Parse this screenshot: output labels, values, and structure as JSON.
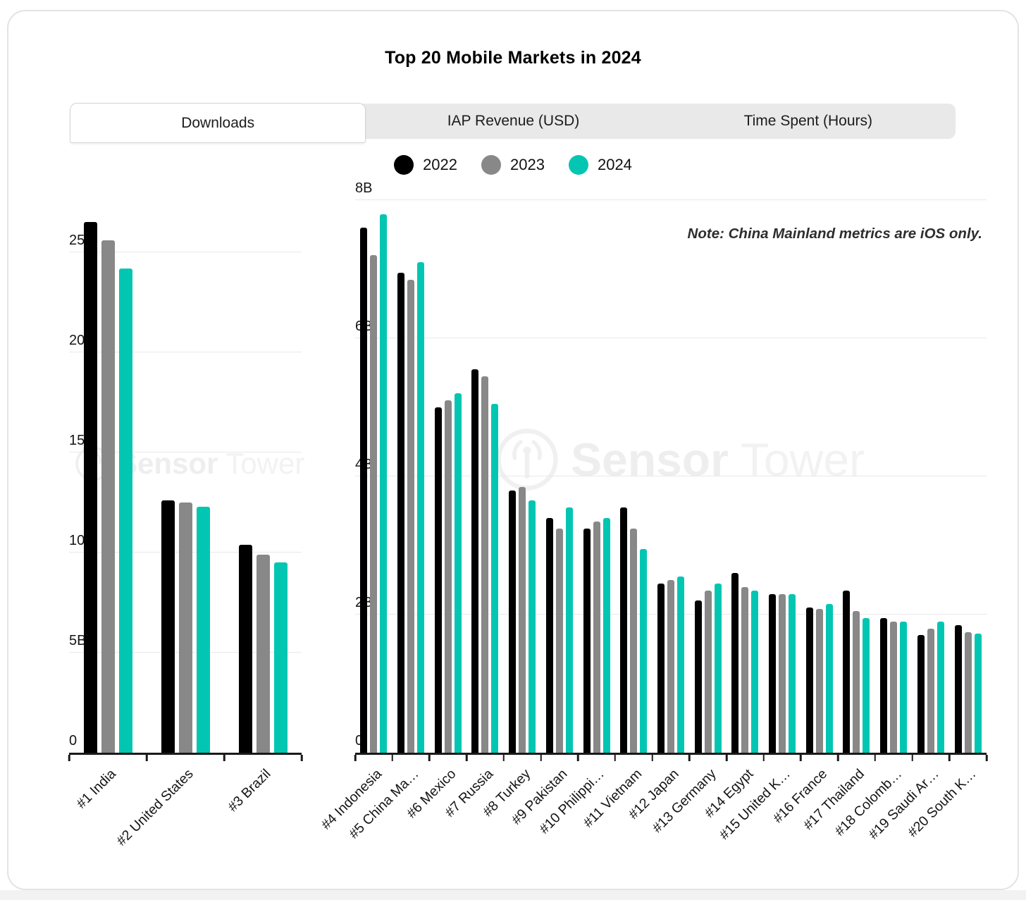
{
  "title": "Top 20 Mobile Markets in 2024",
  "tabs": [
    {
      "label": "Downloads",
      "active": true
    },
    {
      "label": "IAP Revenue (USD)",
      "active": false
    },
    {
      "label": "Time Spent (Hours)",
      "active": false
    }
  ],
  "legend": [
    {
      "label": "2022",
      "color": "#000000"
    },
    {
      "label": "2023",
      "color": "#888888"
    },
    {
      "label": "2024",
      "color": "#03c6b2"
    }
  ],
  "note": "Note: China Mainland metrics are iOS only.",
  "watermark": {
    "bold": "Sensor",
    "light": "Tower"
  },
  "colors": {
    "accent_2022": "#000000",
    "accent_2023": "#888888",
    "accent_2024": "#03c6b2",
    "tabbar_bg": "#e9e9e9",
    "gridline": "#e9e9e9",
    "axis": "#1a1a1a"
  },
  "chart_data": [
    {
      "type": "bar",
      "name": "downloads-top-3-markets",
      "unit": "billions of downloads",
      "categories": [
        "#1 India",
        "#2 United States",
        "#3 Brazil"
      ],
      "series": [
        {
          "name": "2022",
          "color": "#000000",
          "values": [
            26.5,
            12.6,
            10.4
          ]
        },
        {
          "name": "2023",
          "color": "#888888",
          "values": [
            25.6,
            12.5,
            9.9
          ]
        },
        {
          "name": "2024",
          "color": "#03c6b2",
          "values": [
            24.2,
            12.3,
            9.5
          ]
        }
      ],
      "ylim": [
        0,
        27.6
      ],
      "yticks": [
        {
          "label": "0",
          "value": 0
        },
        {
          "label": "5B",
          "value": 5
        },
        {
          "label": "10B",
          "value": 10
        },
        {
          "label": "15B",
          "value": 15
        },
        {
          "label": "20B",
          "value": 20
        },
        {
          "label": "25B",
          "value": 25
        }
      ],
      "grid": true,
      "legend_position": "top-center"
    },
    {
      "type": "bar",
      "name": "downloads-markets-4-to-20",
      "unit": "billions of downloads",
      "categories": [
        "#4 Indonesia",
        "#5 China Ma…",
        "#6 Mexico",
        "#7 Russia",
        "#8 Turkey",
        "#9 Pakistan",
        "#10 Philippi…",
        "#11 Vietnam",
        "#12 Japan",
        "#13 Germany",
        "#14 Egypt",
        "#15 United K…",
        "#16 France",
        "#17 Thailand",
        "#18 Colomb…",
        "#19 Saudi Ar…",
        "#20 South K…"
      ],
      "series": [
        {
          "name": "2022",
          "color": "#000000",
          "values": [
            7.6,
            6.95,
            5.0,
            5.55,
            3.8,
            3.4,
            3.25,
            3.55,
            2.45,
            2.2,
            2.6,
            2.3,
            2.1,
            2.35,
            1.95,
            1.7,
            1.85
          ]
        },
        {
          "name": "2023",
          "color": "#888888",
          "values": [
            7.2,
            6.85,
            5.1,
            5.45,
            3.85,
            3.25,
            3.35,
            3.25,
            2.5,
            2.35,
            2.4,
            2.3,
            2.08,
            2.05,
            1.9,
            1.8,
            1.75
          ]
        },
        {
          "name": "2024",
          "color": "#03c6b2",
          "values": [
            7.8,
            7.1,
            5.2,
            5.05,
            3.65,
            3.55,
            3.4,
            2.95,
            2.55,
            2.45,
            2.35,
            2.3,
            2.15,
            1.95,
            1.9,
            1.9,
            1.72
          ]
        }
      ],
      "ylim": [
        0,
        8
      ],
      "yticks": [
        {
          "label": "0",
          "value": 0
        },
        {
          "label": "2B",
          "value": 2
        },
        {
          "label": "4B",
          "value": 4
        },
        {
          "label": "6B",
          "value": 6
        },
        {
          "label": "8B",
          "value": 8
        }
      ],
      "grid": true,
      "annotation": "Note: China Mainland metrics are iOS only."
    }
  ]
}
